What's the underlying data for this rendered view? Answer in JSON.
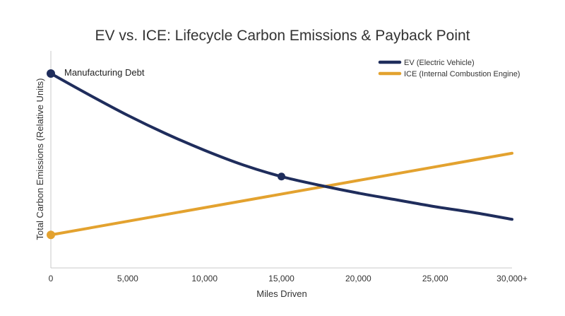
{
  "chart_data": {
    "type": "line",
    "title": "EV vs. ICE: Lifecycle Carbon Emissions & Payback Point",
    "xlabel": "Miles Driven",
    "ylabel": "Total Carbon Emissions (Relative Units)",
    "xlim": [
      0,
      30000
    ],
    "ylim": [
      0,
      100
    ],
    "x_ticks": [
      0,
      5000,
      10000,
      15000,
      20000,
      25000,
      30000
    ],
    "x_tick_labels": [
      "0",
      "5,000",
      "10,000",
      "15,000",
      "20,000",
      "25,000",
      "30,000+"
    ],
    "grid": false,
    "legend_position": "top-right",
    "series": [
      {
        "name": "EV (Electric Vehicle)",
        "color": "#1f2d5c",
        "x": [
          0,
          2500,
          5000,
          7500,
          10000,
          12500,
          15000,
          17500,
          20000,
          22500,
          25000,
          27500,
          30000
        ],
        "y": [
          100,
          89,
          78.5,
          69,
          60.5,
          53,
          47,
          42.5,
          38.5,
          35,
          31.5,
          28.5,
          25
        ]
      },
      {
        "name": "ICE (Internal Combustion Engine)",
        "color": "#e3a22f",
        "x": [
          0,
          30000
        ],
        "y": [
          17,
          59
        ]
      }
    ],
    "markers": [
      {
        "series": 0,
        "x": 0,
        "y": 100
      },
      {
        "series": 1,
        "x": 0,
        "y": 17
      },
      {
        "series": 0,
        "x": 15000,
        "y": 47
      }
    ],
    "annotations": [
      {
        "text": "Manufacturing Debt",
        "x": 0,
        "y": 100
      }
    ]
  }
}
